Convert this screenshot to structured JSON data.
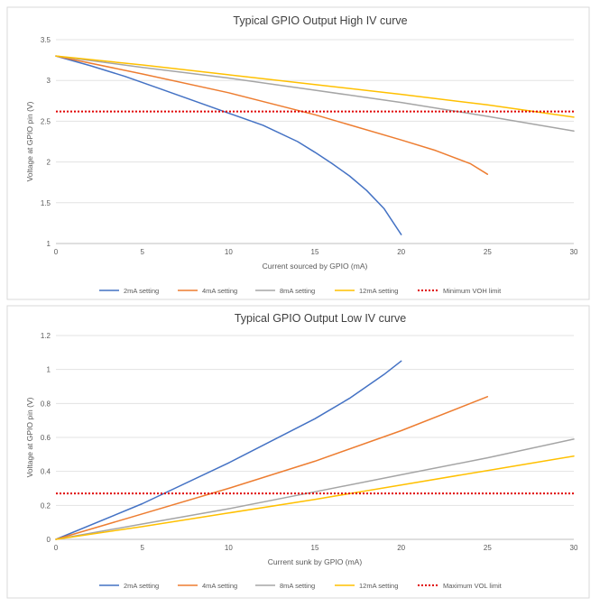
{
  "chart_data": [
    {
      "type": "line",
      "title": "Typical GPIO Output High IV curve",
      "xlabel": "Current sourced by GPIO (mA)",
      "ylabel": "Voltage at GPIO pin (V)",
      "xlim": [
        0,
        30
      ],
      "ylim": [
        1,
        3.5
      ],
      "xticks": [
        0,
        5,
        10,
        15,
        20,
        25,
        30
      ],
      "yticks": [
        1,
        1.5,
        2,
        2.5,
        3,
        3.5
      ],
      "grid": true,
      "legend_position": "bottom",
      "series": [
        {
          "name": "2mA setting",
          "color": "#4472C4",
          "dashed": false,
          "x": [
            0,
            2,
            4,
            6,
            8,
            10,
            12,
            14,
            15,
            16,
            17,
            18,
            19,
            20
          ],
          "y": [
            3.3,
            3.18,
            3.05,
            2.9,
            2.75,
            2.6,
            2.45,
            2.25,
            2.12,
            1.98,
            1.83,
            1.65,
            1.43,
            1.11
          ]
        },
        {
          "name": "4mA setting",
          "color": "#ED7D31",
          "dashed": false,
          "x": [
            0,
            5,
            10,
            15,
            20,
            22,
            24,
            25
          ],
          "y": [
            3.3,
            3.08,
            2.85,
            2.58,
            2.27,
            2.14,
            1.98,
            1.85
          ]
        },
        {
          "name": "8mA setting",
          "color": "#A5A5A5",
          "dashed": false,
          "x": [
            0,
            5,
            10,
            15,
            20,
            25,
            30
          ],
          "y": [
            3.3,
            3.16,
            3.03,
            2.88,
            2.73,
            2.56,
            2.38
          ]
        },
        {
          "name": "12mA setting",
          "color": "#FFC000",
          "dashed": false,
          "x": [
            0,
            5,
            10,
            15,
            20,
            25,
            30
          ],
          "y": [
            3.3,
            3.19,
            3.07,
            2.95,
            2.83,
            2.7,
            2.55
          ]
        },
        {
          "name": "Minimum VOH limit",
          "color": "#E00000",
          "dashed": true,
          "x": [
            0,
            30
          ],
          "y": [
            2.62,
            2.62
          ]
        }
      ]
    },
    {
      "type": "line",
      "title": "Typical GPIO Output Low IV curve",
      "xlabel": "Current sunk by GPIO (mA)",
      "ylabel": "Voltage at GPIO pin (V)",
      "xlim": [
        0,
        30
      ],
      "ylim": [
        0,
        1.2
      ],
      "xticks": [
        0,
        5,
        10,
        15,
        20,
        25,
        30
      ],
      "yticks": [
        0,
        0.2,
        0.4,
        0.6,
        0.8,
        1,
        1.2
      ],
      "grid": true,
      "legend_position": "bottom",
      "series": [
        {
          "name": "2mA setting",
          "color": "#4472C4",
          "dashed": false,
          "x": [
            0,
            5,
            10,
            15,
            17,
            19,
            20
          ],
          "y": [
            0,
            0.21,
            0.45,
            0.71,
            0.83,
            0.97,
            1.05
          ]
        },
        {
          "name": "4mA setting",
          "color": "#ED7D31",
          "dashed": false,
          "x": [
            0,
            5,
            10,
            15,
            20,
            25
          ],
          "y": [
            0,
            0.15,
            0.3,
            0.46,
            0.64,
            0.84
          ]
        },
        {
          "name": "8mA setting",
          "color": "#A5A5A5",
          "dashed": false,
          "x": [
            0,
            5,
            10,
            15,
            20,
            25,
            30
          ],
          "y": [
            0,
            0.09,
            0.18,
            0.28,
            0.38,
            0.48,
            0.59
          ]
        },
        {
          "name": "12mA setting",
          "color": "#FFC000",
          "dashed": false,
          "x": [
            0,
            5,
            10,
            15,
            20,
            25,
            30
          ],
          "y": [
            0,
            0.075,
            0.155,
            0.235,
            0.32,
            0.405,
            0.49
          ]
        },
        {
          "name": "Maximum VOL limit",
          "color": "#E00000",
          "dashed": true,
          "x": [
            0,
            30
          ],
          "y": [
            0.27,
            0.27
          ]
        }
      ]
    }
  ]
}
